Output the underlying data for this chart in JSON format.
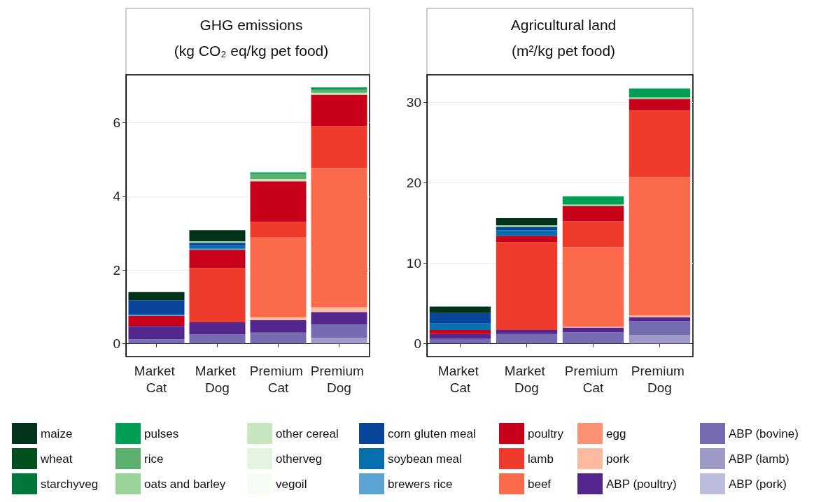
{
  "chart_data": [
    {
      "type": "bar",
      "stacked": true,
      "title": "GHG emissions",
      "subtitle": "(kg CO₂ eq/kg pet food)",
      "categories": [
        "Market Cat",
        "Market Dog",
        "Premium Cat",
        "Premium Dog"
      ],
      "ylim": [
        -0.35,
        7.3
      ],
      "yticks": [
        0,
        2,
        4,
        6
      ],
      "grid": "y",
      "series": [
        {
          "color": "#bcbddc",
          "values": [
            0,
            0,
            0,
            0
          ]
        },
        {
          "color": "#9e9ac8",
          "values": [
            0,
            0,
            0,
            0.16
          ]
        },
        {
          "color": "#756bb1",
          "values": [
            0.12,
            0.25,
            0.3,
            0.36
          ]
        },
        {
          "color": "#54278f",
          "values": [
            0.36,
            0.33,
            0.34,
            0.34
          ]
        },
        {
          "color": "#fcbba1",
          "values": [
            0,
            0,
            0.08,
            0.13
          ]
        },
        {
          "color": "#fc9272",
          "values": [
            0,
            0,
            0,
            0
          ]
        },
        {
          "color": "#fb6a4a",
          "values": [
            0,
            0,
            2.16,
            3.78
          ]
        },
        {
          "color": "#ef3b2c",
          "values": [
            0,
            1.47,
            0.43,
            1.14
          ]
        },
        {
          "color": "#c8001a",
          "values": [
            0.27,
            0.5,
            1.1,
            0.85
          ]
        },
        {
          "color": "#5ba3d3",
          "values": [
            0.04,
            0.03,
            0,
            0
          ]
        },
        {
          "color": "#0570b0",
          "values": [
            0,
            0.08,
            0,
            0
          ]
        },
        {
          "color": "#08449c",
          "values": [
            0.39,
            0.08,
            0,
            0
          ]
        },
        {
          "color": "#f7fcf5",
          "values": [
            0,
            0,
            0,
            0
          ]
        },
        {
          "color": "#e5f4e0",
          "values": [
            0,
            0,
            0,
            0
          ]
        },
        {
          "color": "#c7e6c0",
          "values": [
            0,
            0,
            0.06,
            0.05
          ]
        },
        {
          "color": "#9ad39a",
          "values": [
            0,
            0.04,
            0,
            0
          ]
        },
        {
          "color": "#5ab06c",
          "values": [
            0,
            0,
            0.14,
            0.09
          ]
        },
        {
          "color": "#009e55",
          "values": [
            0,
            0,
            0.04,
            0.06
          ]
        },
        {
          "color": "#00773a",
          "values": [
            0,
            0,
            0,
            0
          ]
        },
        {
          "color": "#00501f",
          "values": [
            0,
            0,
            0,
            0
          ]
        },
        {
          "color": "#00331a",
          "values": [
            0.22,
            0.3,
            0,
            0
          ]
        }
      ]
    },
    {
      "type": "bar",
      "stacked": true,
      "title": "Agricultural land",
      "subtitle": "(m²/kg pet food)",
      "categories": [
        "Market Cat",
        "Market Dog",
        "Premium Cat",
        "Premium Dog"
      ],
      "ylim": [
        -1.6,
        33.4
      ],
      "yticks": [
        0,
        10,
        20,
        30
      ],
      "grid": "y",
      "legend": "bottom",
      "series": [
        {
          "name": "ABP (pork)",
          "color": "#bcbddc",
          "values": [
            0,
            0,
            0,
            0
          ]
        },
        {
          "name": "ABP (lamb)",
          "color": "#9e9ac8",
          "values": [
            0,
            0,
            0,
            1.1
          ]
        },
        {
          "name": "ABP (bovine)",
          "color": "#756bb1",
          "values": [
            0.6,
            1.2,
            1.4,
            1.7
          ]
        },
        {
          "name": "ABP (poultry)",
          "color": "#54278f",
          "values": [
            0.6,
            0.5,
            0.6,
            0.5
          ]
        },
        {
          "name": "pork",
          "color": "#fcbba1",
          "values": [
            0,
            0,
            0.1,
            0.2
          ]
        },
        {
          "name": "egg",
          "color": "#fc9272",
          "values": [
            0,
            0,
            0,
            0
          ]
        },
        {
          "name": "beef",
          "color": "#fb6a4a",
          "values": [
            0,
            0,
            9.9,
            17.2
          ]
        },
        {
          "name": "lamb",
          "color": "#ef3b2c",
          "values": [
            0,
            10.9,
            3.2,
            8.3
          ]
        },
        {
          "name": "poultry",
          "color": "#c8001a",
          "values": [
            0.5,
            0.8,
            1.9,
            1.4
          ]
        },
        {
          "name": "brewers rice",
          "color": "#5ba3d3",
          "values": [
            0,
            0,
            0,
            0
          ]
        },
        {
          "name": "soybean meal",
          "color": "#0570b0",
          "values": [
            0.8,
            0.7,
            0,
            0
          ]
        },
        {
          "name": "corn gluten meal",
          "color": "#08449c",
          "values": [
            1.3,
            0.4,
            0,
            0
          ]
        },
        {
          "name": "vegoil",
          "color": "#f7fcf5",
          "values": [
            0,
            0,
            0,
            0
          ]
        },
        {
          "name": "otherveg",
          "color": "#e5f4e0",
          "values": [
            0,
            0,
            0,
            0
          ]
        },
        {
          "name": "other cereal",
          "color": "#c7e6c0",
          "values": [
            0,
            0,
            0,
            0
          ]
        },
        {
          "name": "oats and barley",
          "color": "#9ad39a",
          "values": [
            0,
            0.2,
            0.2,
            0.2
          ]
        },
        {
          "name": "rice",
          "color": "#5ab06c",
          "values": [
            0,
            0,
            0,
            0
          ]
        },
        {
          "name": "pulses",
          "color": "#009e55",
          "values": [
            0,
            0,
            1.0,
            1.1
          ]
        },
        {
          "name": "starchyveg",
          "color": "#00773a",
          "values": [
            0,
            0,
            0,
            0
          ]
        },
        {
          "name": "wheat",
          "color": "#00501f",
          "values": [
            0,
            0,
            0,
            0
          ]
        },
        {
          "name": "maize",
          "color": "#00331a",
          "values": [
            0.8,
            0.9,
            0,
            0
          ]
        }
      ]
    }
  ]
}
